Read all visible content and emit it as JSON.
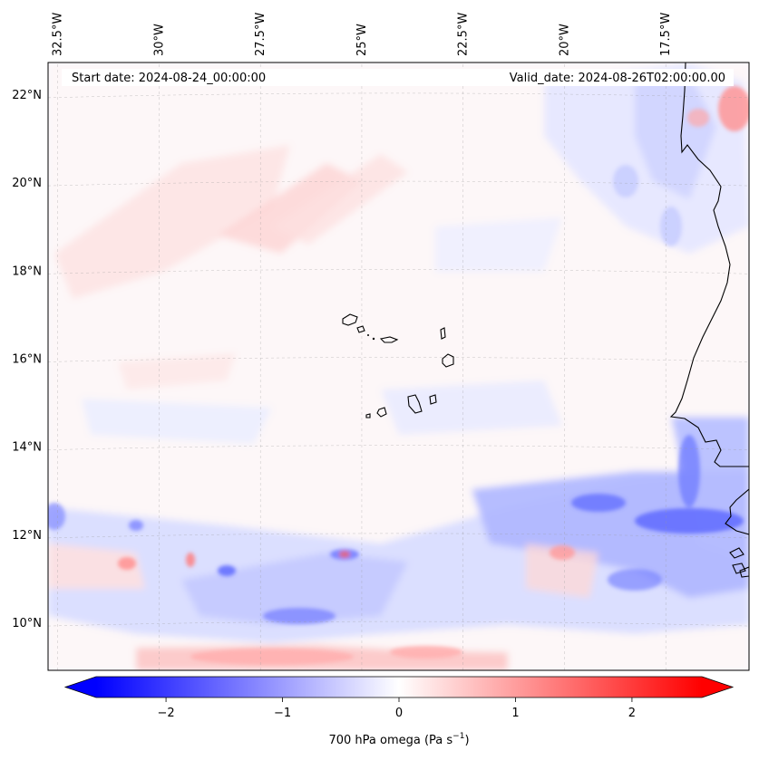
{
  "map": {
    "start_label": "Start date: 2024-08-24_00:00:00",
    "valid_label": "Valid_date: 2024-08-26T02:00:00.00",
    "lon_ticks": [
      {
        "label": "32.5°W",
        "lon": -32.5
      },
      {
        "label": "30°W",
        "lon": -30
      },
      {
        "label": "27.5°W",
        "lon": -27.5
      },
      {
        "label": "25°W",
        "lon": -25
      },
      {
        "label": "22.5°W",
        "lon": -22.5
      },
      {
        "label": "20°W",
        "lon": -20
      },
      {
        "label": "17.5°W",
        "lon": -17.5
      }
    ],
    "lat_ticks": [
      {
        "label": "22°N",
        "lat": 22
      },
      {
        "label": "20°N",
        "lat": 20
      },
      {
        "label": "18°N",
        "lat": 18
      },
      {
        "label": "16°N",
        "lat": 16
      },
      {
        "label": "14°N",
        "lat": 14
      },
      {
        "label": "12°N",
        "lat": 12
      },
      {
        "label": "10°N",
        "lat": 10
      }
    ],
    "field_colormap": "bwr",
    "gridlines": "dashed",
    "coastlines": true
  },
  "colorbar": {
    "label_prefix": "700 hPa omega (Pa s",
    "label_sup": "−1",
    "label_suffix": ")",
    "ticks": [
      {
        "label": "−2",
        "value": -2
      },
      {
        "label": "−1",
        "value": -1
      },
      {
        "label": "0",
        "value": 0
      },
      {
        "label": "1",
        "value": 1
      },
      {
        "label": "2",
        "value": 2
      }
    ],
    "range": [
      -2.6,
      2.6
    ],
    "low_color": "#0000ff",
    "mid_color": "#ffffff",
    "high_color": "#ff0000",
    "extend": "both"
  }
}
